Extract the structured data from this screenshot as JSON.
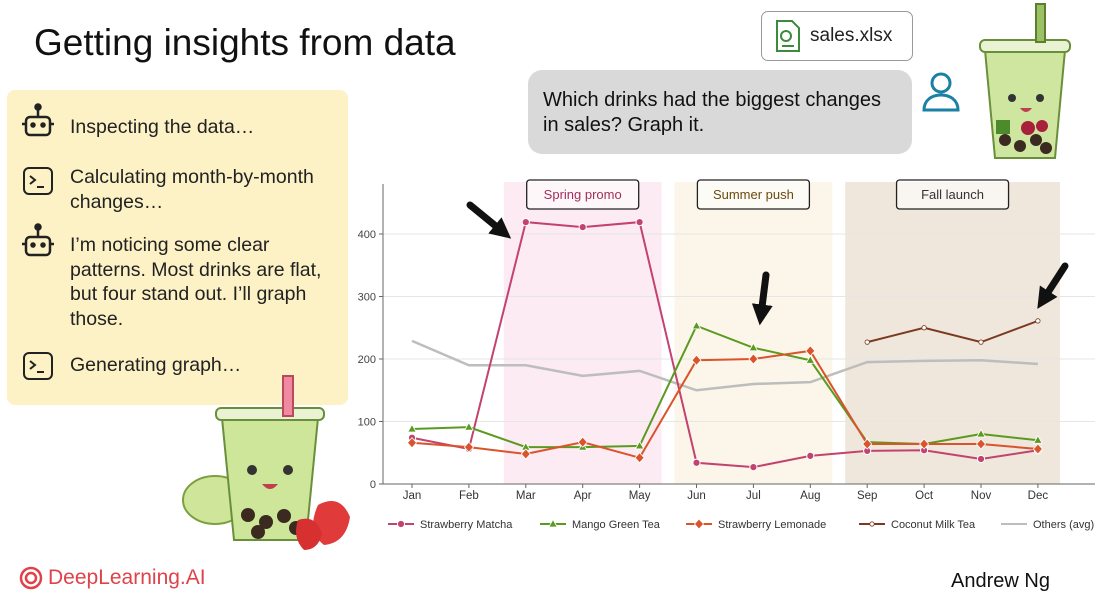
{
  "title": "Getting insights from data",
  "file_name": "sales.xlsx",
  "user_message": "Which drinks had the biggest changes in sales? Graph it.",
  "agent_steps": [
    {
      "icon": "robot",
      "text": "Inspecting the data…"
    },
    {
      "icon": "terminal",
      "text": "Calculating month-by-month changes…"
    },
    {
      "icon": "robot",
      "text": "I’m noticing some clear patterns. Most drinks are flat, but four stand out. I’ll graph those."
    },
    {
      "icon": "terminal",
      "text": "Generating graph…"
    }
  ],
  "brand": "DeepLearning.AI",
  "author": "Andrew Ng",
  "chart_data": {
    "type": "line",
    "categories": [
      "Jan",
      "Feb",
      "Mar",
      "Apr",
      "May",
      "Jun",
      "Jul",
      "Aug",
      "Sep",
      "Oct",
      "Nov",
      "Dec"
    ],
    "series": [
      {
        "name": "Strawberry Matcha",
        "color": "#c2436f",
        "marker": "circle",
        "values": [
          74,
          56,
          419,
          411,
          419,
          34,
          27,
          45,
          53,
          54,
          40,
          54
        ]
      },
      {
        "name": "Mango Green Tea",
        "color": "#5a9a1f",
        "marker": "triangle",
        "values": [
          88,
          91,
          59,
          59,
          61,
          253,
          218,
          198,
          67,
          64,
          80,
          70
        ]
      },
      {
        "name": "Strawberry Lemonade",
        "color": "#d9532b",
        "marker": "diamond",
        "values": [
          66,
          59,
          48,
          67,
          42,
          198,
          200,
          213,
          64,
          64,
          64,
          56
        ]
      },
      {
        "name": "Coconut Milk Tea",
        "color": "#7a3a22",
        "marker": "dot",
        "values": [
          null,
          null,
          null,
          null,
          null,
          null,
          null,
          null,
          227,
          250,
          227,
          261
        ]
      },
      {
        "name": "Others (avg)",
        "color": "#bdbdbd",
        "marker": "none",
        "values": [
          229,
          190,
          190,
          173,
          181,
          150,
          160,
          163,
          195,
          197,
          198,
          192
        ]
      }
    ],
    "ylim": [
      0,
      480
    ],
    "yticks": [
      0,
      100,
      200,
      300,
      400
    ],
    "grid": true,
    "regions": [
      {
        "label": "Spring promo",
        "start": "Mar",
        "end": "May",
        "color": "#fcebf2",
        "text_color": "#a0305a"
      },
      {
        "label": "Summer push",
        "start": "Jun",
        "end": "Aug",
        "color": "#fbf6e9",
        "text_color": "#6b4a10"
      },
      {
        "label": "Fall launch",
        "start": "Sep",
        "end": "Dec",
        "color": "#efe6dc",
        "text_color": "#333333"
      }
    ],
    "legend": "bottom"
  }
}
